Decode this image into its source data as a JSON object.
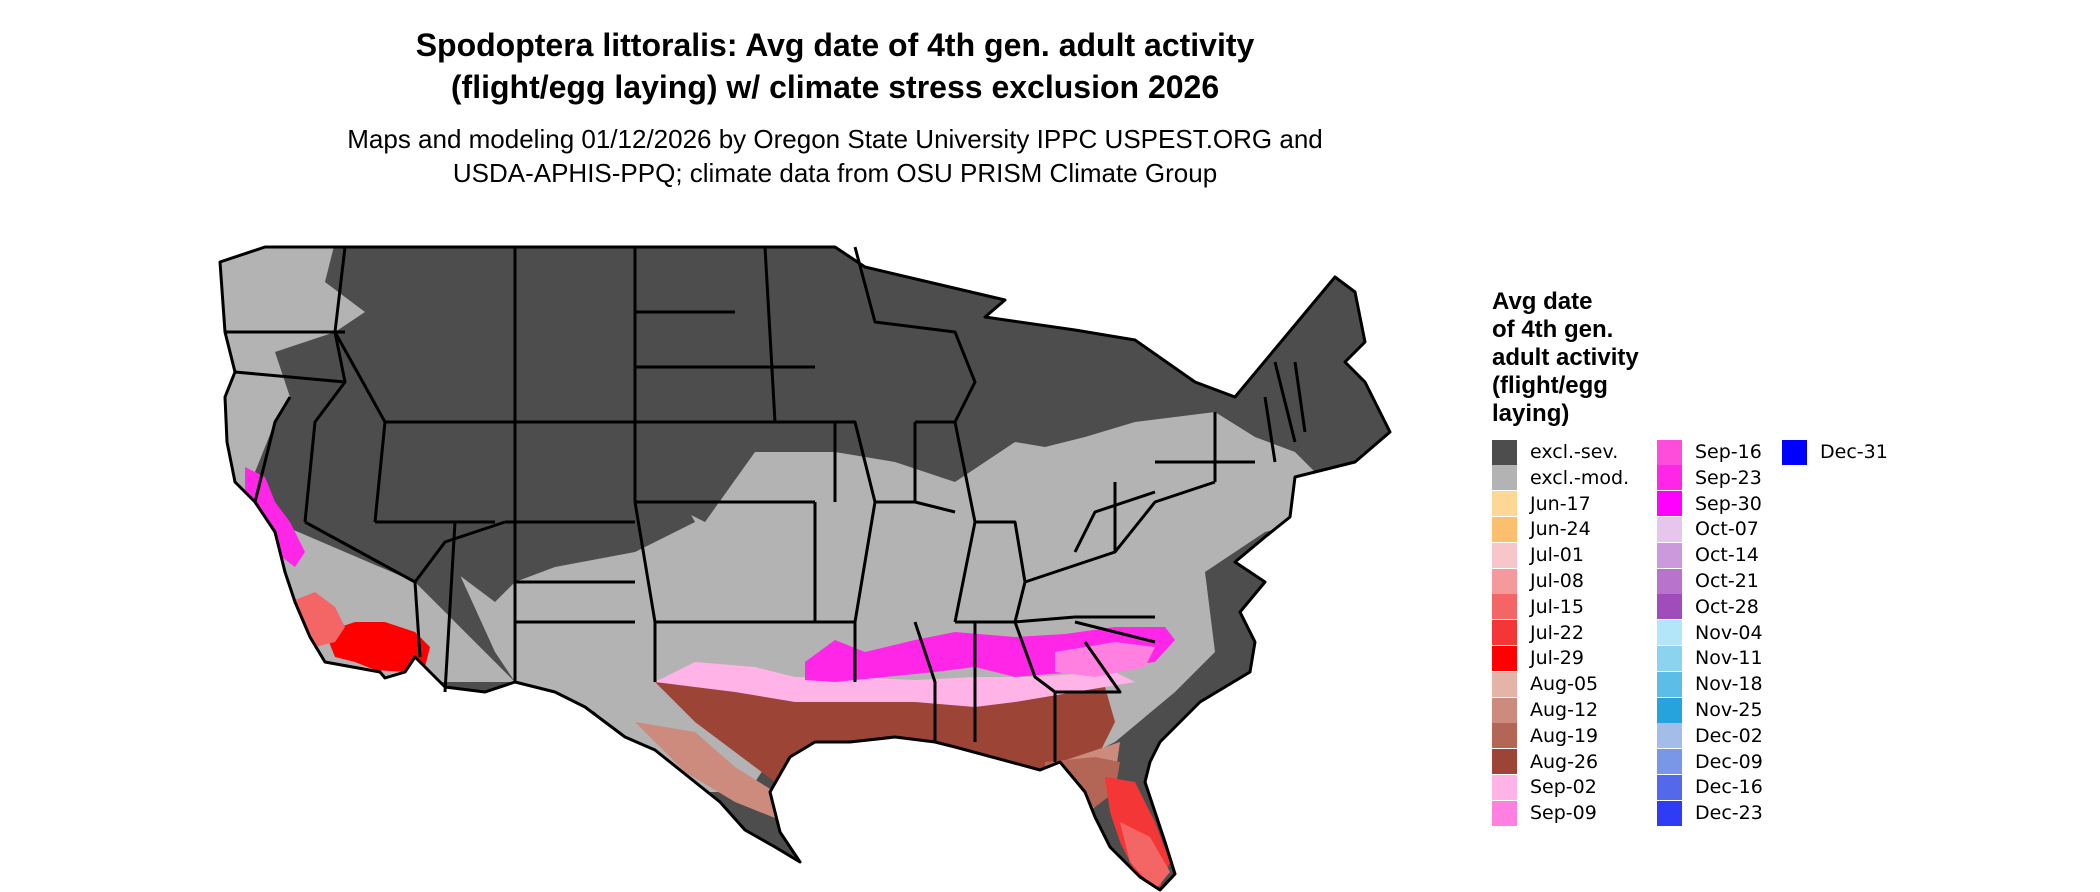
{
  "title_line1": "Spodoptera littoralis: Avg date of 4th gen. adult activity",
  "title_line2": "(flight/egg laying) w/ climate stress exclusion 2026",
  "subtitle_line1": "Maps and modeling 01/12/2026 by Oregon State University IPPC USPEST.ORG and",
  "subtitle_line2": "USDA-APHIS-PPQ; climate data from OSU PRISM Climate Group",
  "legend": {
    "title_lines": [
      "Avg date",
      "of 4th gen.",
      "adult activity",
      "(flight/egg",
      "laying)"
    ],
    "items": [
      {
        "label": "excl.-sev.",
        "color": "#4d4d4d"
      },
      {
        "label": "excl.-mod.",
        "color": "#b3b3b3"
      },
      {
        "label": "Jun-17",
        "color": "#fdd795"
      },
      {
        "label": "Jun-24",
        "color": "#fcbf6e"
      },
      {
        "label": "Jul-01",
        "color": "#f6c6cb"
      },
      {
        "label": "Jul-08",
        "color": "#f49a9d"
      },
      {
        "label": "Jul-15",
        "color": "#f46666"
      },
      {
        "label": "Jul-22",
        "color": "#f43636"
      },
      {
        "label": "Jul-29",
        "color": "#ff0000"
      },
      {
        "label": "Aug-05",
        "color": "#e6b3a8"
      },
      {
        "label": "Aug-12",
        "color": "#cc8b7d"
      },
      {
        "label": "Aug-19",
        "color": "#b36556"
      },
      {
        "label": "Aug-26",
        "color": "#9c4436"
      },
      {
        "label": "Sep-02",
        "color": "#ffb3e6"
      },
      {
        "label": "Sep-09",
        "color": "#ff80e0"
      },
      {
        "label": "Sep-16",
        "color": "#ff4ddb"
      },
      {
        "label": "Sep-23",
        "color": "#ff26e8"
      },
      {
        "label": "Sep-30",
        "color": "#ff00ff"
      },
      {
        "label": "Oct-07",
        "color": "#e6c6ec"
      },
      {
        "label": "Oct-14",
        "color": "#cc99dd"
      },
      {
        "label": "Oct-21",
        "color": "#b873cc"
      },
      {
        "label": "Oct-28",
        "color": "#a04dbb"
      },
      {
        "label": "Nov-04",
        "color": "#b3e6f9"
      },
      {
        "label": "Nov-11",
        "color": "#8cd3f0"
      },
      {
        "label": "Nov-18",
        "color": "#5cbde6"
      },
      {
        "label": "Nov-25",
        "color": "#26a3dc"
      },
      {
        "label": "Dec-02",
        "color": "#a3bce8"
      },
      {
        "label": "Dec-09",
        "color": "#7a96e6"
      },
      {
        "label": "Dec-16",
        "color": "#5468ec"
      },
      {
        "label": "Dec-23",
        "color": "#2e3cf5"
      },
      {
        "label": "Dec-31",
        "color": "#0000ff"
      }
    ]
  }
}
